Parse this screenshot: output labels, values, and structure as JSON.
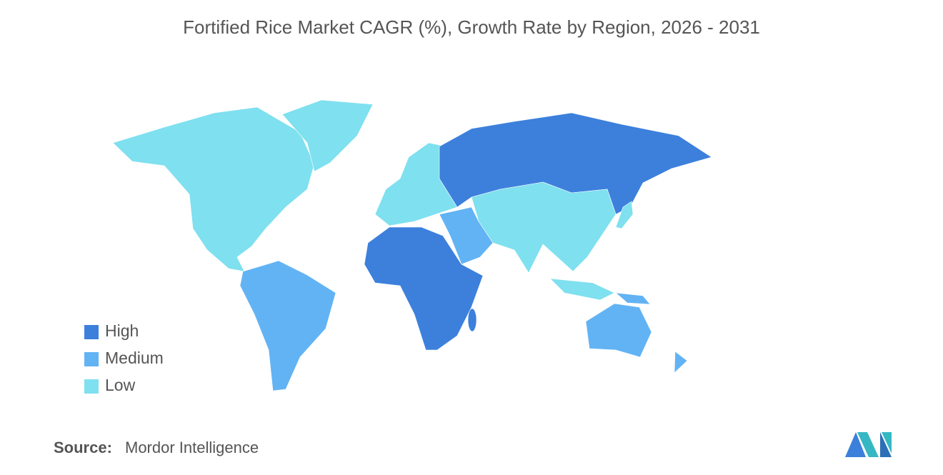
{
  "title": "Fortified Rice Market CAGR (%), Growth Rate by Region, 2026 - 2031",
  "legend": [
    {
      "label": "High",
      "color": "#3c80dc"
    },
    {
      "label": "Medium",
      "color": "#62b3f4"
    },
    {
      "label": "Low",
      "color": "#7fe0ef"
    }
  ],
  "source": {
    "label": "Source:",
    "text": "Mordor Intelligence"
  }
}
